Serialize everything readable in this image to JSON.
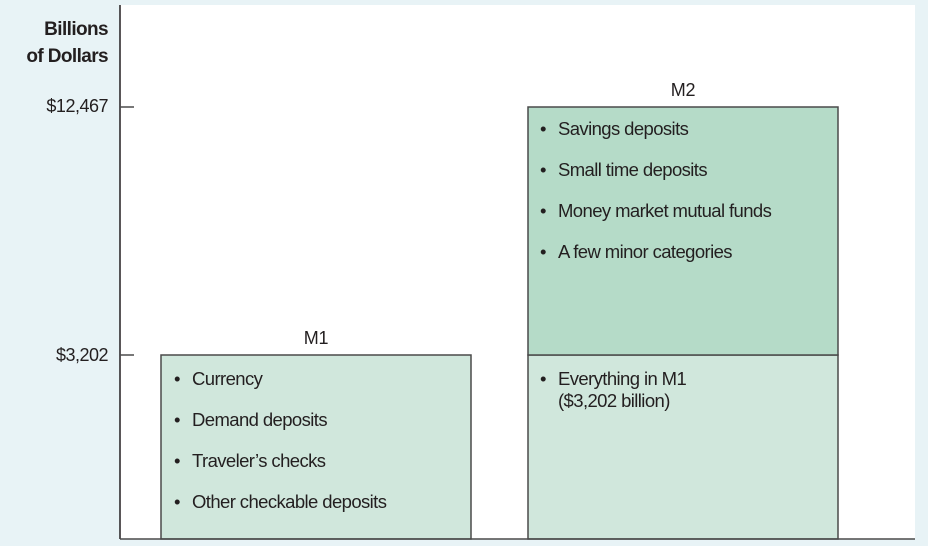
{
  "chart_data": {
    "type": "bar",
    "ylabel": "Billions of Dollars",
    "ylabel_lines": [
      "Billions",
      "of Dollars"
    ],
    "yticks": [
      {
        "value": 3202,
        "label": "$3,202"
      },
      {
        "value": 12467,
        "label": "$12,467"
      }
    ],
    "scale_note_visible": false,
    "grid": false,
    "categories": [
      "M1",
      "M2"
    ],
    "bars": [
      {
        "name": "M1",
        "value": 3202,
        "color": "#d0e7dc",
        "segments": [
          {
            "from": 0,
            "to": 3202,
            "color": "#d0e7dc",
            "items": [
              "Currency",
              "Demand deposits",
              "Traveler’s checks",
              "Other checkable deposits"
            ]
          }
        ]
      },
      {
        "name": "M2",
        "value": 12467,
        "segments": [
          {
            "from": 0,
            "to": 3202,
            "color": "#d0e7dc",
            "items": [
              "Everything in M1",
              "($3,202 billion)"
            ]
          },
          {
            "from": 3202,
            "to": 12467,
            "color": "#b5dbc8",
            "items": [
              "Savings deposits",
              "Small time deposits",
              "Money market mutual funds",
              "A few minor categories"
            ]
          }
        ]
      }
    ]
  }
}
